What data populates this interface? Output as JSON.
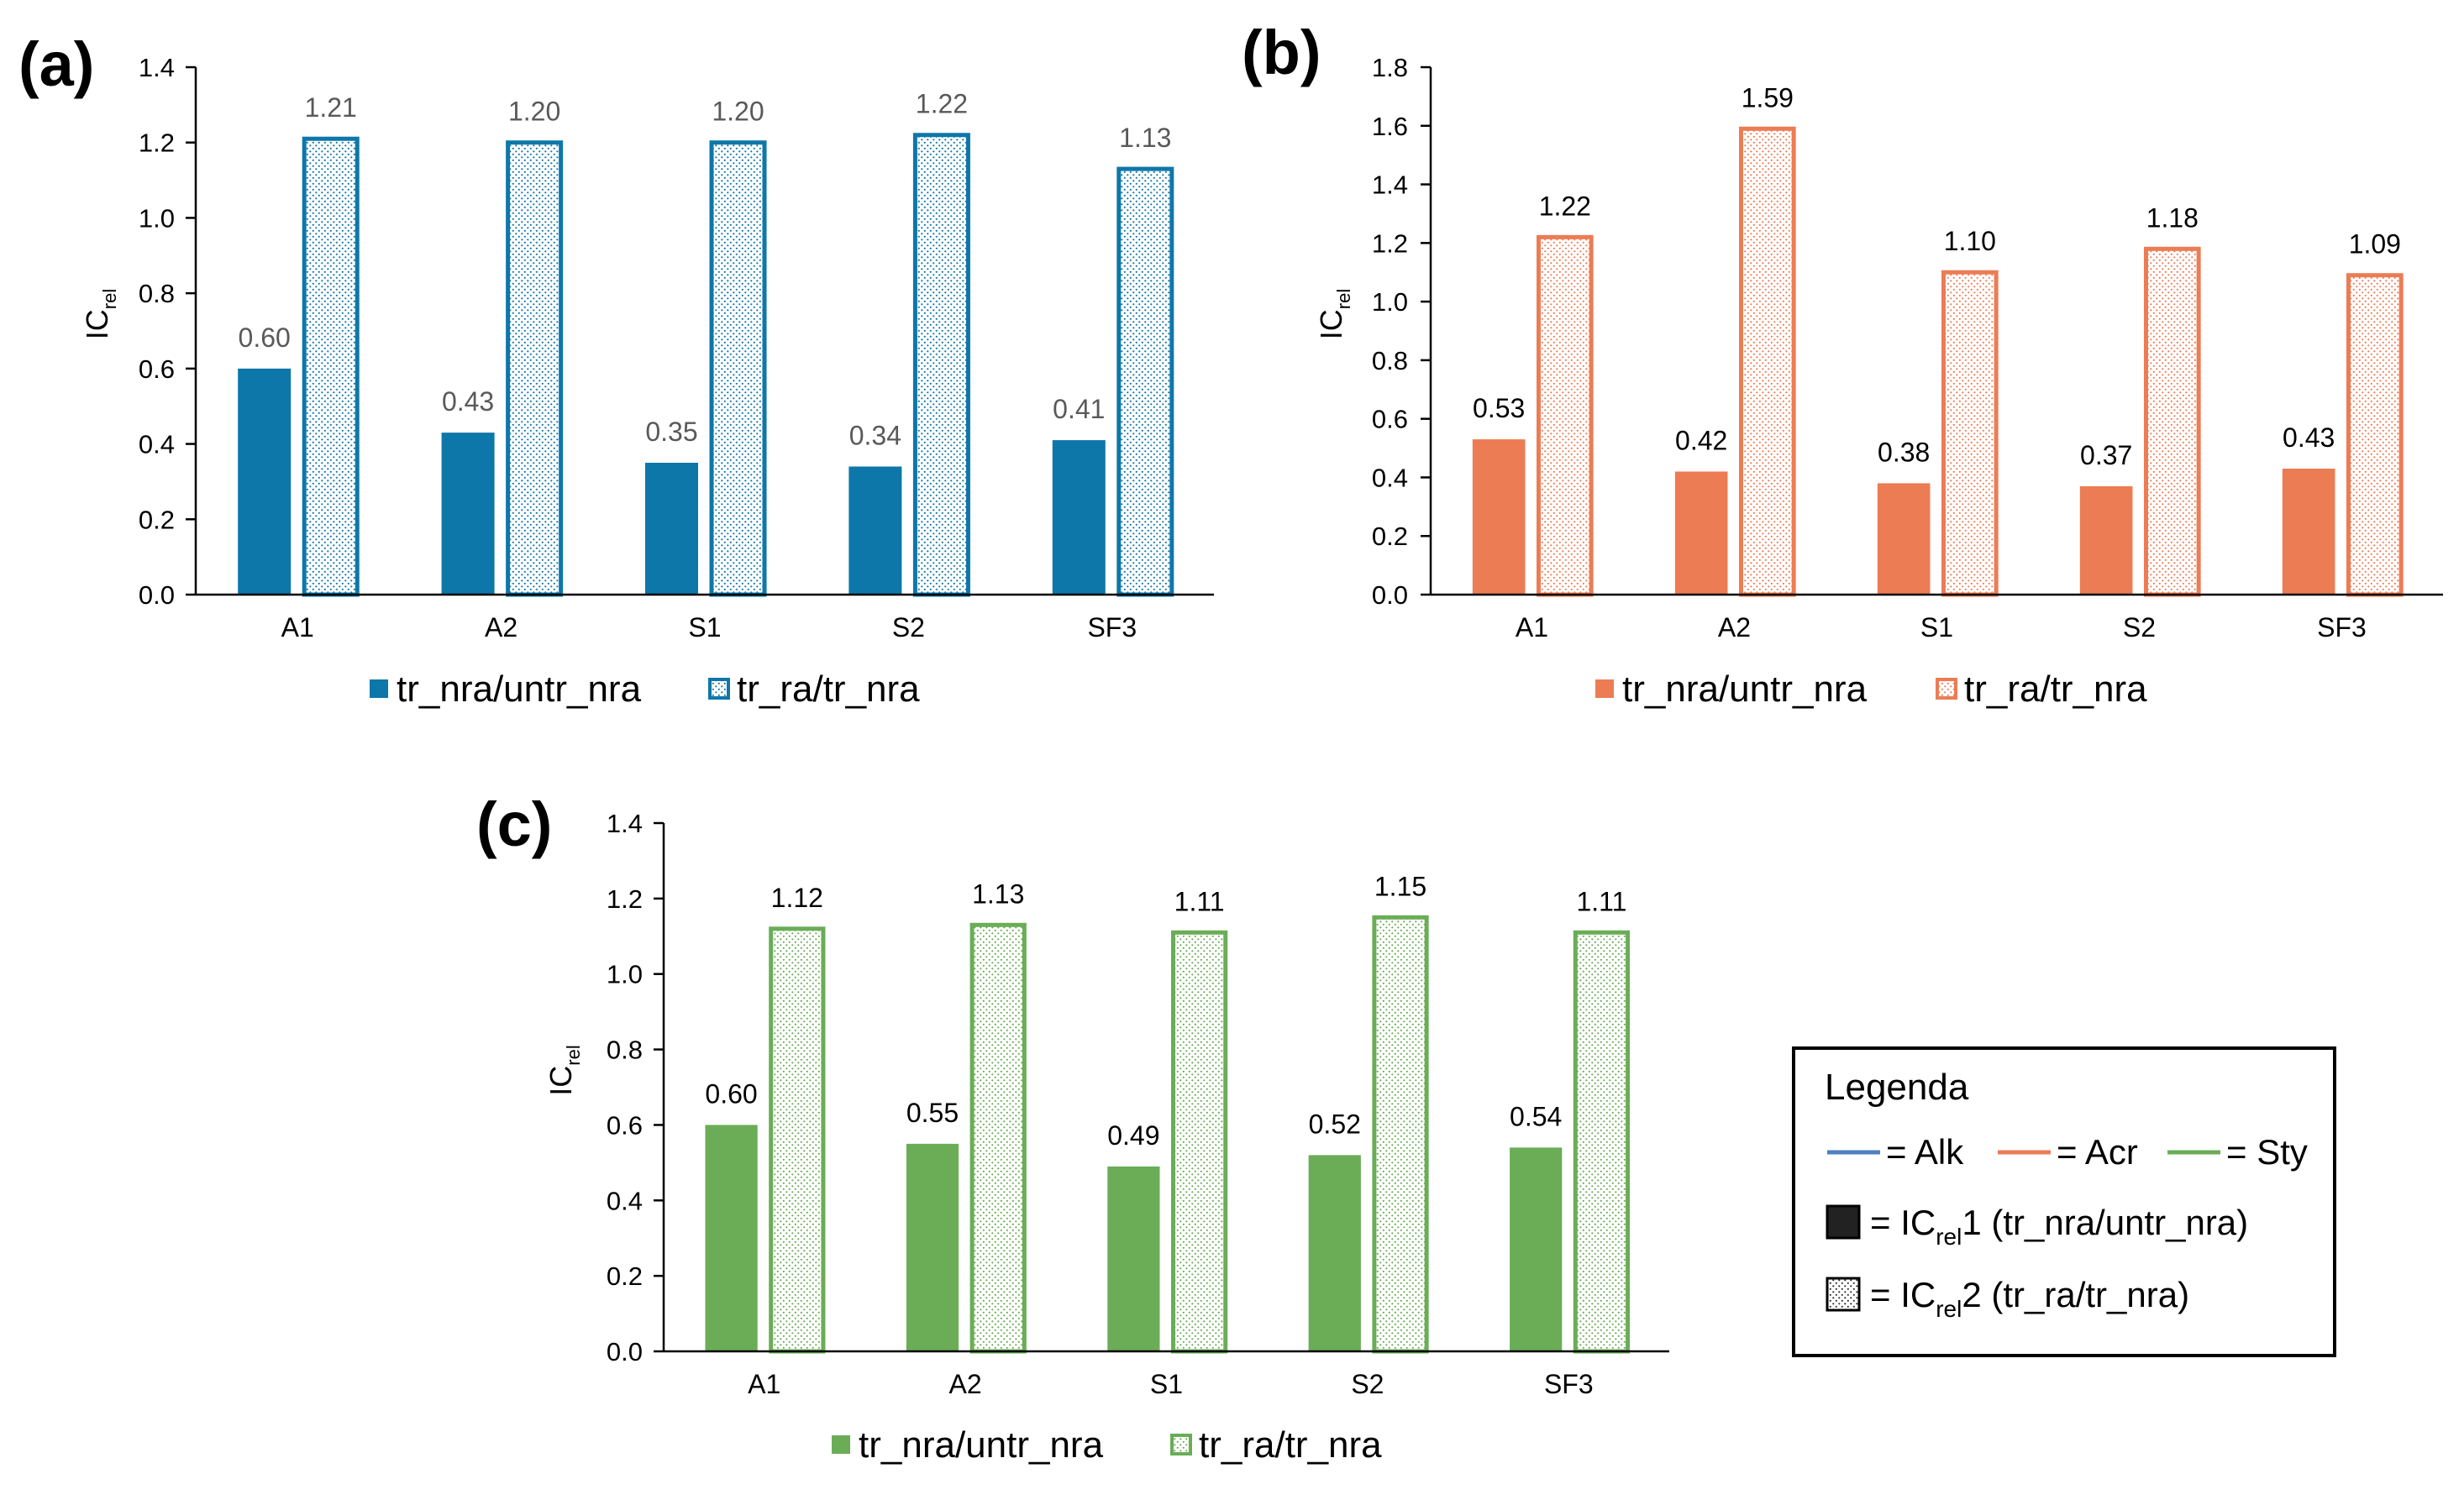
{
  "chart_data": [
    {
      "panel": "(a)",
      "type": "bar",
      "categories": [
        "A1",
        "A2",
        "S1",
        "S2",
        "SF3"
      ],
      "series": [
        {
          "name": "tr_nra/untr_nra",
          "values": [
            0.6,
            0.43,
            0.35,
            0.34,
            0.41
          ],
          "style": "solid"
        },
        {
          "name": "tr_ra/tr_nra",
          "values": [
            1.21,
            1.2,
            1.2,
            1.22,
            1.13
          ],
          "style": "dotted"
        }
      ],
      "data_labels": [
        [
          "0.60",
          "0.43",
          "0.35",
          "0.34",
          "0.41"
        ],
        [
          "1.21",
          "1.20",
          "1.20",
          "1.22",
          "1.13"
        ]
      ],
      "ylabel": "IC",
      "ylabel_sub": "rel",
      "ylim": [
        0,
        1.4
      ],
      "yticks": [
        "0.0",
        "0.2",
        "0.4",
        "0.6",
        "0.8",
        "1.0",
        "1.2",
        "1.4"
      ],
      "color": "#0e77a9",
      "label_color": "#595959",
      "legend_position": "bottom"
    },
    {
      "panel": "(b)",
      "type": "bar",
      "categories": [
        "A1",
        "A2",
        "S1",
        "S2",
        "SF3"
      ],
      "series": [
        {
          "name": "tr_nra/untr_nra",
          "values": [
            0.53,
            0.42,
            0.38,
            0.37,
            0.43
          ],
          "style": "solid"
        },
        {
          "name": "tr_ra/tr_nra",
          "values": [
            1.22,
            1.59,
            1.1,
            1.18,
            1.09
          ],
          "style": "dotted"
        }
      ],
      "data_labels": [
        [
          "0.53",
          "0.42",
          "0.38",
          "0.37",
          "0.43"
        ],
        [
          "1.22",
          "1.59",
          "1.10",
          "1.18",
          "1.09"
        ]
      ],
      "ylabel": "IC",
      "ylabel_sub": "rel",
      "ylim": [
        0,
        1.8
      ],
      "yticks": [
        "0.0",
        "0.2",
        "0.4",
        "0.6",
        "0.8",
        "1.0",
        "1.2",
        "1.4",
        "1.6",
        "1.8"
      ],
      "color": "#ec7c54",
      "label_color": "#000000",
      "legend_position": "bottom"
    },
    {
      "panel": "(c)",
      "type": "bar",
      "categories": [
        "A1",
        "A2",
        "S1",
        "S2",
        "SF3"
      ],
      "series": [
        {
          "name": "tr_nra/untr_nra",
          "values": [
            0.6,
            0.55,
            0.49,
            0.52,
            0.54
          ],
          "style": "solid"
        },
        {
          "name": "tr_ra/tr_nra",
          "values": [
            1.12,
            1.13,
            1.11,
            1.15,
            1.11
          ],
          "style": "dotted"
        }
      ],
      "data_labels": [
        [
          "0.60",
          "0.55",
          "0.49",
          "0.52",
          "0.54"
        ],
        [
          "1.12",
          "1.13",
          "1.11",
          "1.15",
          "1.11"
        ]
      ],
      "ylabel": "IC",
      "ylabel_sub": "rel",
      "ylim": [
        0,
        1.4
      ],
      "yticks": [
        "0.0",
        "0.2",
        "0.4",
        "0.6",
        "0.8",
        "1.0",
        "1.2",
        "1.4"
      ],
      "color": "#6aad56",
      "label_color": "#000000",
      "legend_position": "bottom"
    }
  ],
  "legend_box": {
    "title": "Legenda",
    "lines": [
      {
        "label": "= Alk",
        "color": "#4e7fc1"
      },
      {
        "label": "= Acr",
        "color": "#ec7c54"
      },
      {
        "label": "= Sty",
        "color": "#6aad56"
      }
    ],
    "items": [
      {
        "prefix": "= IC",
        "sub": "rel",
        "suffix": "1 (tr_nra/untr_nra)",
        "style": "solid"
      },
      {
        "prefix": "= IC",
        "sub": "rel",
        "suffix": "2 (tr_ra/tr_nra)",
        "style": "dotted"
      }
    ]
  }
}
